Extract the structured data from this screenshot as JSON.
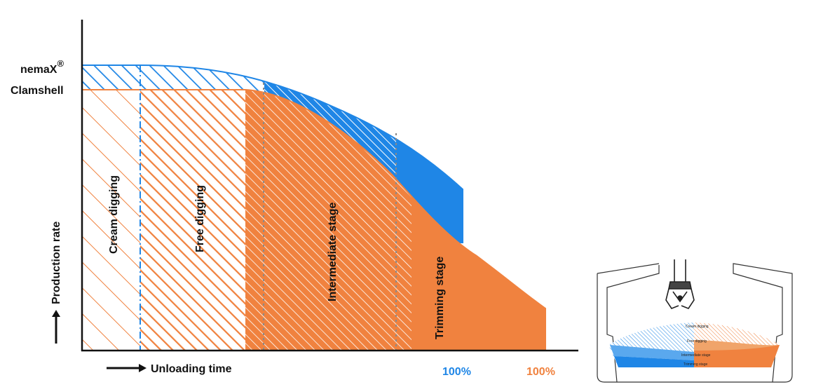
{
  "colors": {
    "nemax_blue": "#1f86e6",
    "clamshell_orange": "#f0823f",
    "axis": "#111111",
    "hatch_white": "#ffffff"
  },
  "legend": {
    "nemax": "nemaX",
    "nemax_mark": "®",
    "clamshell": "Clamshell"
  },
  "axes": {
    "y_label": "Production rate",
    "x_label": "Unloading time",
    "arrow_icon": "right-arrow-icon"
  },
  "stages": [
    "Cream digging",
    "Free digging",
    "Intermediate stage",
    "Trimming stage"
  ],
  "completion": {
    "nemax_label": "100%",
    "clamshell_label": "100%"
  },
  "inset": {
    "stages": [
      "Cream digging",
      "Free digging",
      "Intermediate stage",
      "Trimming stage"
    ]
  }
}
